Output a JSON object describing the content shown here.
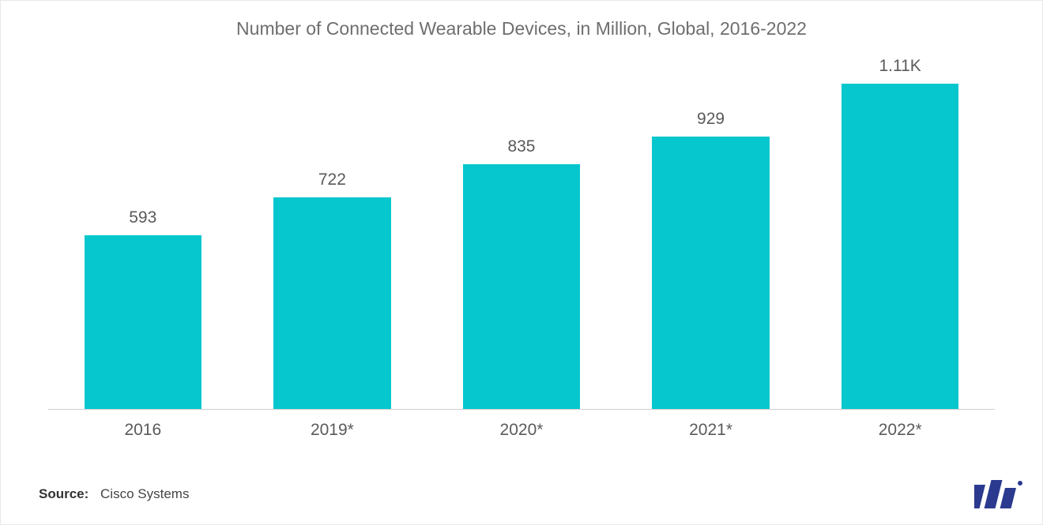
{
  "chart": {
    "type": "bar",
    "title": "Number of Connected Wearable Devices, in Million, Global, 2016-2022",
    "title_fontsize": 23,
    "title_color": "#6e6e6e",
    "background_color": "#ffffff",
    "border_color": "#e8e8e8",
    "baseline_color": "#cfcfcf",
    "bar_color": "#06c7cd",
    "bar_width_ratio": 0.62,
    "value_label_fontsize": 21,
    "value_label_color": "#5a5a5a",
    "category_label_fontsize": 21,
    "category_label_color": "#5a5a5a",
    "y_max": 1150,
    "y_min": 0,
    "categories": [
      "2016",
      "2019*",
      "2020*",
      "2021*",
      "2022*"
    ],
    "values": [
      593,
      722,
      835,
      929,
      1110
    ],
    "value_labels": [
      "593",
      "722",
      "835",
      "929",
      "1.11K"
    ]
  },
  "source": {
    "label": "Source:",
    "name": "Cisco Systems",
    "label_fontsize": 17,
    "label_color": "#333333",
    "name_color": "#444444"
  },
  "logo": {
    "bar_color": "#2b3a8f",
    "dot_color": "#2b3a8f"
  }
}
